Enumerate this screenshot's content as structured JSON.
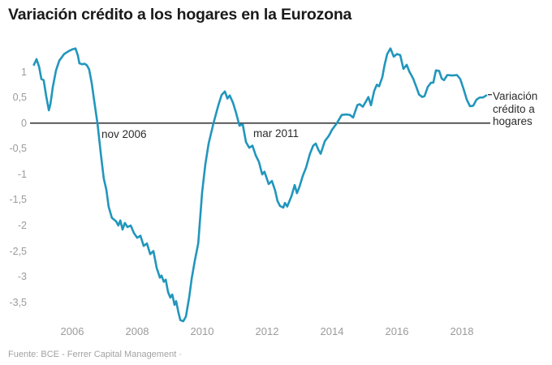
{
  "header": {
    "title": "Variación crédito a los hogares en la Eurozona"
  },
  "footer": {
    "source": "Fuente: BCE - Ferrer Capital Management ·"
  },
  "legend": {
    "lines": [
      "Variación",
      "crédito a",
      "hogares"
    ]
  },
  "colors": {
    "background": "#ffffff",
    "line": "#2196bd",
    "zero_line": "#1a1a1a",
    "title_text": "#1a1a1a",
    "axis_label": "#9b9b9b",
    "annotation_text": "#2b2b2b",
    "legend_text": "#2b2b2b",
    "source_text": "#a2a2a2",
    "leader_dash": "#2b2b2b"
  },
  "chart_data": {
    "type": "line",
    "title": "Variación crédito a los hogares en la Eurozona",
    "xlabel": "",
    "ylabel": "",
    "xlim": [
      2004.7,
      2018.85
    ],
    "ylim": [
      -3.95,
      1.55
    ],
    "grid": "none",
    "zero_line": true,
    "legend_position": "right-of-line-end",
    "x_ticks": {
      "values": [
        2006,
        2008,
        2010,
        2012,
        2014,
        2016,
        2018
      ],
      "labels": [
        "2006",
        "2008",
        "2010",
        "2012",
        "2014",
        "2016",
        "2018"
      ]
    },
    "y_ticks": {
      "values": [
        1,
        0.5,
        0,
        -0.5,
        -1,
        -1.5,
        -2,
        -2.5,
        -3,
        -3.5
      ],
      "labels": [
        "1",
        "0,5",
        "0",
        "-0,5",
        "-1",
        "-1,5",
        "-2",
        "-2,5",
        "-3",
        "-3,5"
      ]
    },
    "annotations": [
      {
        "text": "nov 2006",
        "x": 2006.9,
        "y": -0.22
      },
      {
        "text": "mar 2011",
        "x": 2011.58,
        "y": -0.21
      }
    ],
    "series": [
      {
        "name": "Variación crédito a hogares",
        "x": [
          2004.82,
          2004.9,
          2004.98,
          2005.05,
          2005.12,
          2005.2,
          2005.28,
          2005.33,
          2005.4,
          2005.5,
          2005.6,
          2005.75,
          2005.9,
          2006.0,
          2006.1,
          2006.17,
          2006.22,
          2006.3,
          2006.38,
          2006.45,
          2006.52,
          2006.6,
          2006.68,
          2006.78,
          2006.88,
          2006.97,
          2007.05,
          2007.12,
          2007.22,
          2007.35,
          2007.42,
          2007.48,
          2007.55,
          2007.62,
          2007.7,
          2007.8,
          2007.9,
          2008.0,
          2008.1,
          2008.2,
          2008.3,
          2008.4,
          2008.5,
          2008.6,
          2008.7,
          2008.75,
          2008.82,
          2008.88,
          2008.95,
          2009.02,
          2009.08,
          2009.15,
          2009.2,
          2009.27,
          2009.33,
          2009.42,
          2009.5,
          2009.6,
          2009.68,
          2009.78,
          2009.88,
          2010.0,
          2010.1,
          2010.2,
          2010.35,
          2010.5,
          2010.6,
          2010.7,
          2010.78,
          2010.85,
          2010.95,
          2011.05,
          2011.15,
          2011.25,
          2011.35,
          2011.45,
          2011.55,
          2011.65,
          2011.75,
          2011.85,
          2011.92,
          2012.05,
          2012.15,
          2012.25,
          2012.32,
          2012.4,
          2012.5,
          2012.55,
          2012.62,
          2012.75,
          2012.85,
          2012.92,
          2013.0,
          2013.1,
          2013.2,
          2013.32,
          2013.42,
          2013.5,
          2013.58,
          2013.65,
          2013.78,
          2013.9,
          2014.0,
          2014.15,
          2014.3,
          2014.45,
          2014.55,
          2014.65,
          2014.78,
          2014.85,
          2014.95,
          2015.05,
          2015.12,
          2015.2,
          2015.3,
          2015.38,
          2015.45,
          2015.55,
          2015.62,
          2015.7,
          2015.8,
          2015.9,
          2016.0,
          2016.1,
          2016.2,
          2016.3,
          2016.38,
          2016.5,
          2016.6,
          2016.68,
          2016.78,
          2016.85,
          2016.95,
          2017.05,
          2017.12,
          2017.2,
          2017.3,
          2017.38,
          2017.45,
          2017.55,
          2017.7,
          2017.85,
          2017.95,
          2018.05,
          2018.15,
          2018.25,
          2018.35,
          2018.45,
          2018.55,
          2018.65,
          2018.75
        ],
        "y": [
          1.14,
          1.25,
          1.1,
          0.86,
          0.84,
          0.52,
          0.25,
          0.38,
          0.7,
          1.03,
          1.22,
          1.35,
          1.41,
          1.44,
          1.46,
          1.33,
          1.17,
          1.15,
          1.16,
          1.13,
          1.05,
          0.78,
          0.42,
          -0.02,
          -0.6,
          -1.08,
          -1.3,
          -1.63,
          -1.85,
          -1.92,
          -2.0,
          -1.9,
          -2.08,
          -1.95,
          -2.03,
          -2.0,
          -2.15,
          -2.24,
          -2.2,
          -2.4,
          -2.35,
          -2.56,
          -2.5,
          -2.83,
          -3.02,
          -2.98,
          -3.1,
          -3.06,
          -3.3,
          -3.41,
          -3.35,
          -3.55,
          -3.48,
          -3.7,
          -3.85,
          -3.87,
          -3.78,
          -3.41,
          -3.03,
          -2.67,
          -2.35,
          -1.35,
          -0.8,
          -0.4,
          0.0,
          0.35,
          0.55,
          0.62,
          0.48,
          0.54,
          0.4,
          0.19,
          -0.05,
          -0.02,
          -0.37,
          -0.48,
          -0.44,
          -0.63,
          -0.76,
          -1.0,
          -0.95,
          -1.19,
          -1.13,
          -1.32,
          -1.52,
          -1.62,
          -1.65,
          -1.56,
          -1.63,
          -1.43,
          -1.21,
          -1.37,
          -1.24,
          -1.03,
          -0.87,
          -0.6,
          -0.44,
          -0.4,
          -0.52,
          -0.6,
          -0.35,
          -0.25,
          -0.13,
          0.0,
          0.16,
          0.17,
          0.16,
          0.11,
          0.35,
          0.37,
          0.32,
          0.43,
          0.51,
          0.35,
          0.63,
          0.75,
          0.72,
          0.9,
          1.14,
          1.35,
          1.46,
          1.3,
          1.35,
          1.33,
          1.06,
          1.14,
          1.01,
          0.87,
          0.7,
          0.56,
          0.51,
          0.53,
          0.71,
          0.79,
          0.79,
          1.03,
          1.02,
          0.87,
          0.84,
          0.94,
          0.93,
          0.94,
          0.86,
          0.67,
          0.46,
          0.33,
          0.34,
          0.46,
          0.5,
          0.5,
          0.54
        ]
      }
    ]
  }
}
